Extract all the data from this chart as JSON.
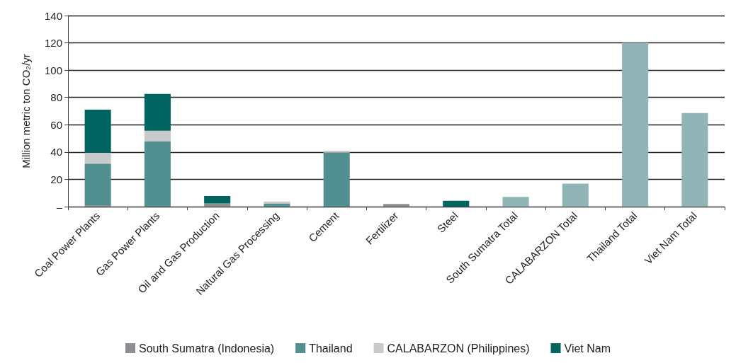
{
  "chart_data": {
    "type": "bar",
    "stacked": true,
    "ylabel": "Million metric ton CO₂/yr",
    "categories": [
      "Coal Power Plants",
      "Gas Power Plants",
      "Oil and Gas Production",
      "Natural Gas Processing",
      "Cement",
      "Fertilizer",
      "Steel",
      "South Sumatra Total",
      "CALABARZON Total",
      "Thailand Total",
      "Viet Nam Total"
    ],
    "series": [
      {
        "name": "South Sumatra (Indonesia)",
        "color": "#8f8f93",
        "values": [
          1,
          0,
          2.3,
          0,
          0,
          2,
          0,
          null,
          null,
          null,
          null
        ]
      },
      {
        "name": "Thailand",
        "color": "#528f90",
        "values": [
          30.5,
          48,
          0,
          2.3,
          39.5,
          0,
          0,
          null,
          null,
          null,
          null
        ]
      },
      {
        "name": "CALABARZON (Philippines)",
        "color": "#c8c9cb",
        "values": [
          8,
          7.6,
          0,
          1.5,
          1.5,
          0,
          0,
          null,
          null,
          null,
          null
        ]
      },
      {
        "name": "Viet Nam",
        "color": "#006460",
        "values": [
          31.5,
          27,
          5.5,
          0,
          0,
          0,
          4.3,
          null,
          null,
          null,
          null
        ]
      },
      {
        "color": "#91b4b6",
        "values": [
          null,
          null,
          null,
          null,
          null,
          null,
          null,
          7.1,
          16.9,
          120,
          68.6
        ]
      }
    ],
    "ylim": [
      0,
      140
    ],
    "yticks": [
      {
        "value": 0,
        "label": "–"
      },
      20,
      40,
      60,
      80,
      100,
      120,
      140
    ],
    "grid": "y",
    "legend": "bottom"
  }
}
